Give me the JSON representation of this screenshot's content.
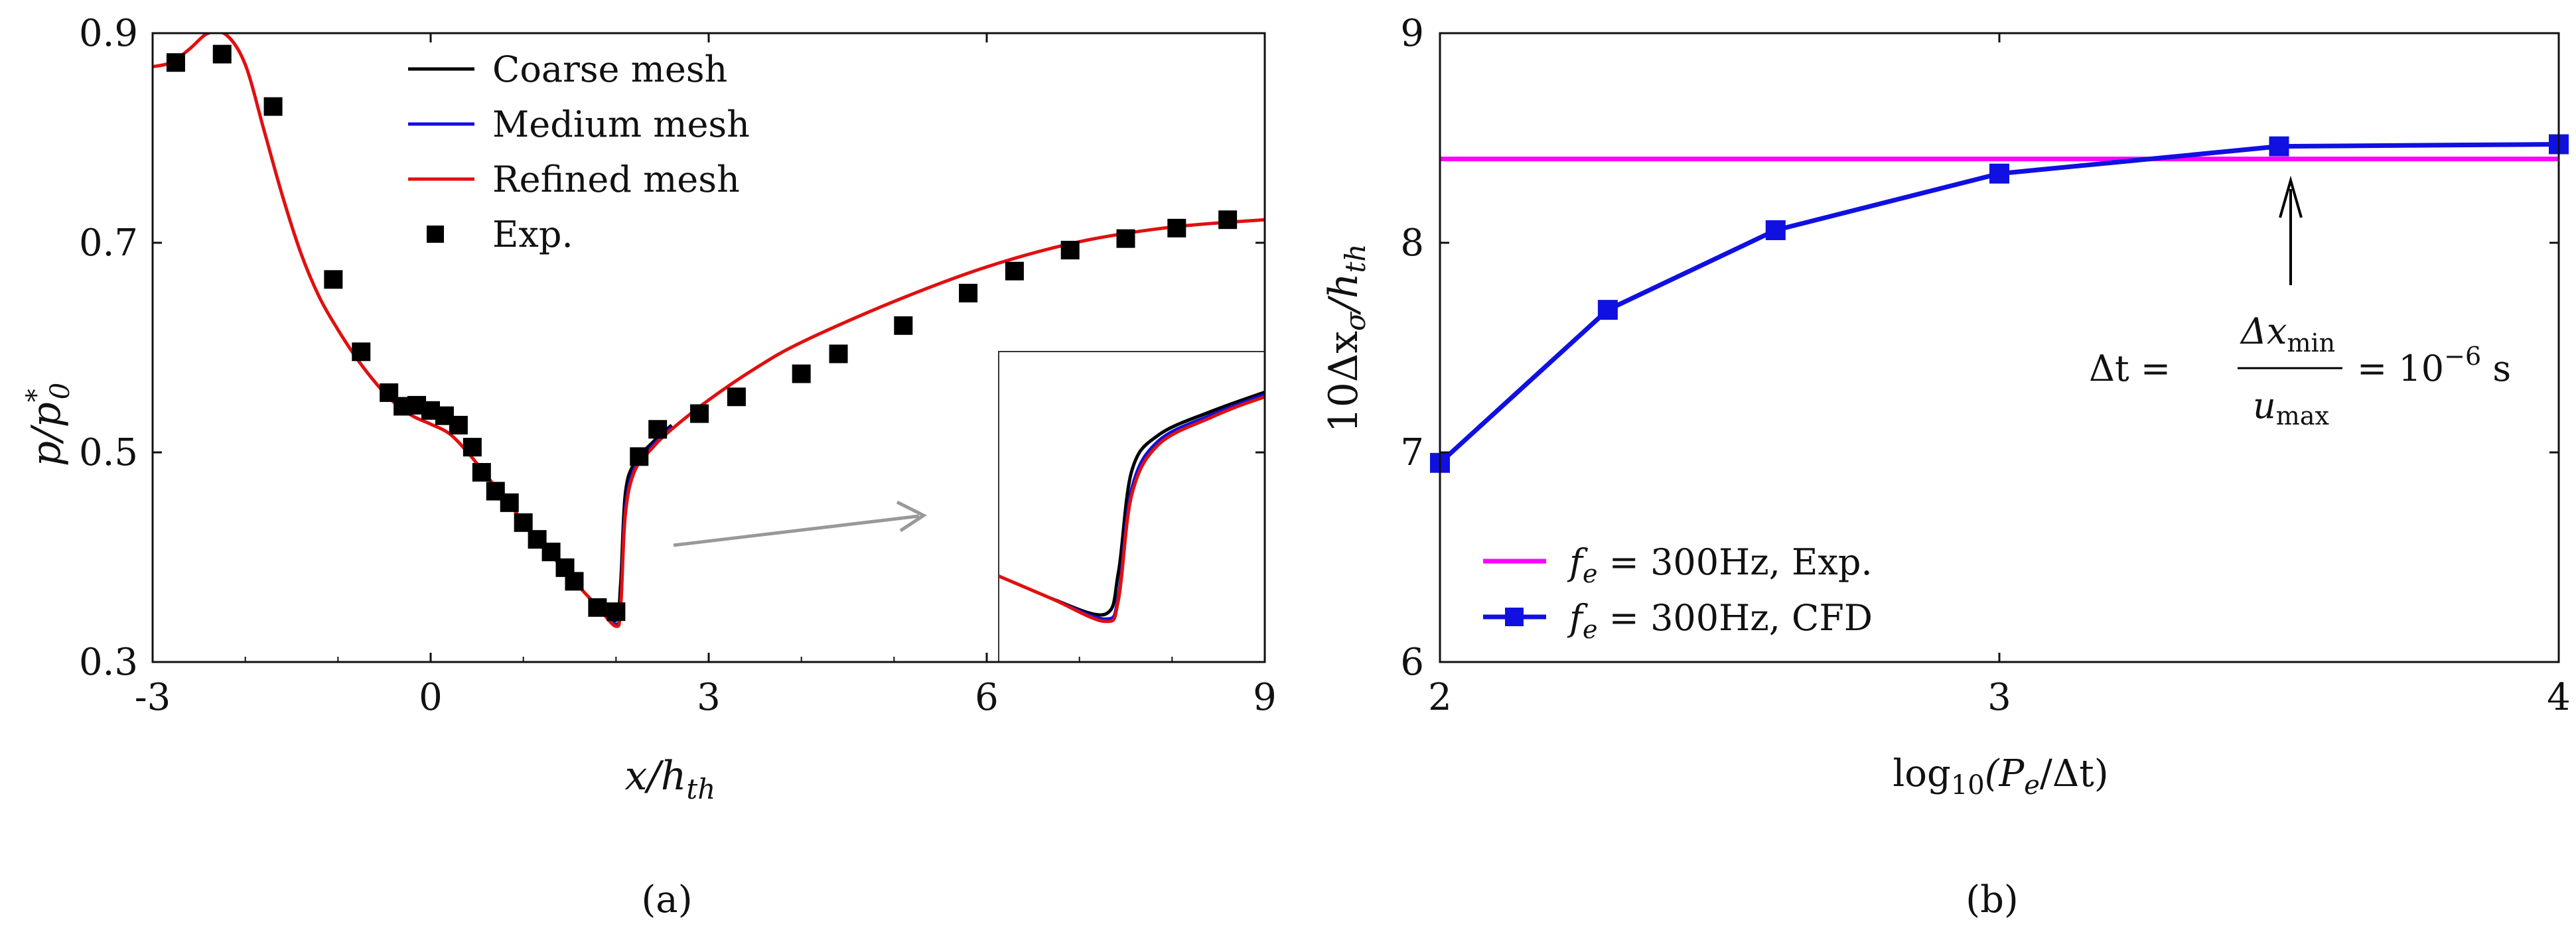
{
  "chart_data": [
    {
      "type": "line",
      "panel_label": "(a)",
      "xlabel": "x/h_th",
      "ylabel": "p/p*_0",
      "xlim": [
        -3,
        9
      ],
      "ylim": [
        0.3,
        0.9
      ],
      "xticks": [
        "-3",
        "0",
        "3",
        "6",
        "9"
      ],
      "yticks": [
        "0.3",
        "0.5",
        "0.7",
        "0.9"
      ],
      "xtick_values": [
        -3,
        0,
        3,
        6,
        9
      ],
      "ytick_values": [
        0.3,
        0.5,
        0.7,
        0.9
      ],
      "legend": [
        "Coarse mesh",
        "Medium mesh",
        "Refined mesh",
        "Exp."
      ],
      "legend_position": "top-center",
      "series": [
        {
          "name": "Refined mesh",
          "color": "#e01010",
          "x": [
            -3,
            -2.8,
            -2.6,
            -2.4,
            -2.2,
            -2.0,
            -1.8,
            -1.6,
            -1.4,
            -1.2,
            -1.0,
            -0.8,
            -0.6,
            -0.4,
            -0.2,
            0.0,
            0.2,
            0.4,
            0.6,
            0.8,
            1.0,
            1.2,
            1.4,
            1.6,
            1.8,
            2.0,
            2.05,
            2.1,
            2.2,
            2.4,
            2.6,
            3.0,
            3.5,
            4.0,
            5.0,
            6.0,
            7.0,
            8.0,
            9.0
          ],
          "y": [
            0.868,
            0.872,
            0.885,
            0.9,
            0.898,
            0.87,
            0.808,
            0.745,
            0.69,
            0.648,
            0.617,
            0.59,
            0.567,
            0.548,
            0.535,
            0.527,
            0.518,
            0.5,
            0.478,
            0.456,
            0.434,
            0.413,
            0.392,
            0.372,
            0.353,
            0.334,
            0.352,
            0.44,
            0.482,
            0.505,
            0.522,
            0.55,
            0.58,
            0.605,
            0.644,
            0.677,
            0.701,
            0.715,
            0.722
          ]
        },
        {
          "name": "Medium mesh",
          "color": "#1010e0",
          "x": [
            1.8,
            2.0,
            2.05,
            2.1,
            2.2,
            2.4,
            2.6
          ],
          "y": [
            0.353,
            0.336,
            0.355,
            0.445,
            0.485,
            0.507,
            0.524
          ]
        },
        {
          "name": "Coarse mesh",
          "color": "#000000",
          "x": [
            1.8,
            2.0,
            2.05,
            2.1,
            2.2,
            2.4,
            2.6
          ],
          "y": [
            0.353,
            0.34,
            0.375,
            0.46,
            0.49,
            0.51,
            0.526
          ]
        },
        {
          "name": "Exp.",
          "color": "#000000",
          "marker": "square",
          "x": [
            -2.75,
            -2.25,
            -1.7,
            -1.05,
            -0.75,
            -0.45,
            -0.3,
            -0.15,
            0.0,
            0.15,
            0.3,
            0.45,
            0.55,
            0.7,
            0.85,
            1.0,
            1.15,
            1.3,
            1.45,
            1.55,
            1.8,
            2.0,
            2.25,
            2.45,
            2.9,
            3.3,
            4.0,
            4.4,
            5.1,
            5.8,
            6.3,
            6.9,
            7.5,
            8.05,
            8.6
          ],
          "y": [
            0.872,
            0.88,
            0.83,
            0.665,
            0.596,
            0.557,
            0.544,
            0.545,
            0.54,
            0.535,
            0.526,
            0.505,
            0.481,
            0.463,
            0.452,
            0.433,
            0.417,
            0.405,
            0.39,
            0.377,
            0.352,
            0.348,
            0.496,
            0.522,
            0.537,
            0.553,
            0.575,
            0.594,
            0.621,
            0.652,
            0.673,
            0.693,
            0.704,
            0.714,
            0.722
          ]
        }
      ],
      "inset": {
        "description": "zoom view",
        "series_colors": [
          "#000000",
          "#1010e0",
          "#e01010"
        ]
      }
    },
    {
      "type": "line",
      "panel_label": "(b)",
      "xlabel": "log10(Pe/Δt)",
      "ylabel": "10Δxσ/h_th",
      "xlim": [
        2,
        4
      ],
      "ylim": [
        6,
        9
      ],
      "xticks": [
        "2",
        "3",
        "4"
      ],
      "yticks": [
        "6",
        "7",
        "8",
        "9"
      ],
      "xtick_values": [
        2,
        3,
        4
      ],
      "ytick_values": [
        6,
        7,
        8,
        9
      ],
      "legend": [
        "f_e = 300Hz, Exp.",
        "f_e = 300Hz, CFD"
      ],
      "legend_position": "bottom-left",
      "series": [
        {
          "name": "f_e = 300Hz, Exp.",
          "color": "#ff00ff",
          "x": [
            2,
            4
          ],
          "y": [
            8.4,
            8.4
          ]
        },
        {
          "name": "f_e = 300Hz, CFD",
          "color": "#1010e0",
          "marker": "square",
          "x": [
            2.0,
            2.3,
            2.6,
            3.0,
            3.5,
            4.0
          ],
          "y": [
            6.95,
            7.68,
            8.06,
            8.33,
            8.46,
            8.47
          ]
        }
      ],
      "annotation": {
        "text_lhs": "Δt =",
        "numerator": "Δx_min",
        "denominator": "u_max",
        "text_rhs": "= 10⁻⁶ s",
        "arrow_x": 3.52
      }
    }
  ],
  "labels": {
    "a_ylabel_main": "p/p",
    "a_ylabel_sup": "*",
    "a_ylabel_sub": "0",
    "a_xlabel_main": "x/h",
    "a_xlabel_sub": "th",
    "b_ylabel_main": "10Δx",
    "b_ylabel_sub1": "σ",
    "b_ylabel_mid": "/h",
    "b_ylabel_sub2": "th",
    "b_xlabel_pre": "log",
    "b_xlabel_sub10": "10",
    "b_xlabel_open": "(P",
    "b_xlabel_sube": "e",
    "b_xlabel_close": "/Δt)",
    "legend_b_f": "f",
    "legend_b_sub": "e",
    "legend_b1_rest": " = 300Hz, Exp.",
    "legend_b2_rest": " = 300Hz, CFD",
    "ann_dt": "Δt =",
    "ann_num": "Δx",
    "ann_num_sub": "min",
    "ann_den": "u",
    "ann_den_sub": "max",
    "ann_rhs": "= 10",
    "ann_rhs_sup": "−6",
    "ann_unit": " s"
  }
}
